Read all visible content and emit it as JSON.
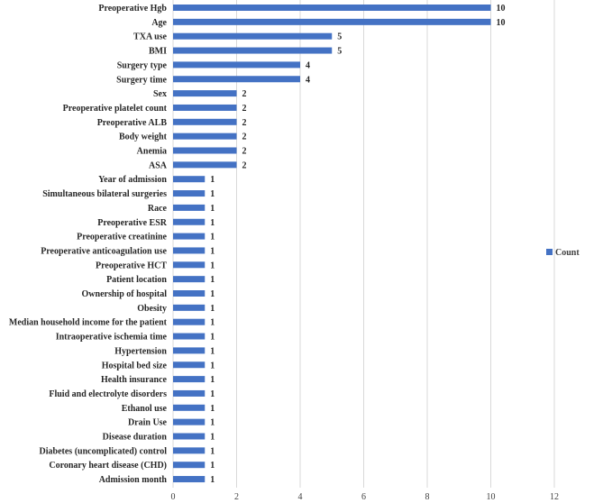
{
  "chart_data": {
    "type": "bar",
    "orientation": "horizontal",
    "categories": [
      "Preoperative Hgb",
      "Age",
      "TXA use",
      "BMI",
      "Surgery type",
      "Surgery time",
      "Sex",
      "Preoperative platelet count",
      "Preoperative ALB",
      "Body weight",
      "Anemia",
      "ASA",
      "Year of admission",
      "Simultaneous bilateral surgeries",
      "Race",
      "Preoperative ESR",
      "Preoperative creatinine",
      "Preoperative anticoagulation use",
      "Preoperative  HCT",
      "Patient location",
      "Ownership of hospital",
      "Obesity",
      "Median household income for the patient",
      "Intraoperative ischemia time",
      "Hypertension",
      "Hospital bed size",
      "Health insurance",
      "Fluid and electrolyte disorders",
      "Ethanol use",
      "Drain Use",
      "Disease duration",
      "Diabetes (uncomplicated) control",
      "Coronary heart disease (CHD)",
      "Admission month"
    ],
    "series": [
      {
        "name": "Count",
        "color": "#4472C4",
        "values": [
          10,
          10,
          5,
          5,
          4,
          4,
          2,
          2,
          2,
          2,
          2,
          2,
          1,
          1,
          1,
          1,
          1,
          1,
          1,
          1,
          1,
          1,
          1,
          1,
          1,
          1,
          1,
          1,
          1,
          1,
          1,
          1,
          1,
          1
        ]
      }
    ],
    "xlim": [
      0,
      12
    ],
    "xticks": [
      0,
      2,
      4,
      6,
      8,
      10,
      12
    ],
    "grid": true,
    "legend": "right",
    "data_labels": true
  }
}
